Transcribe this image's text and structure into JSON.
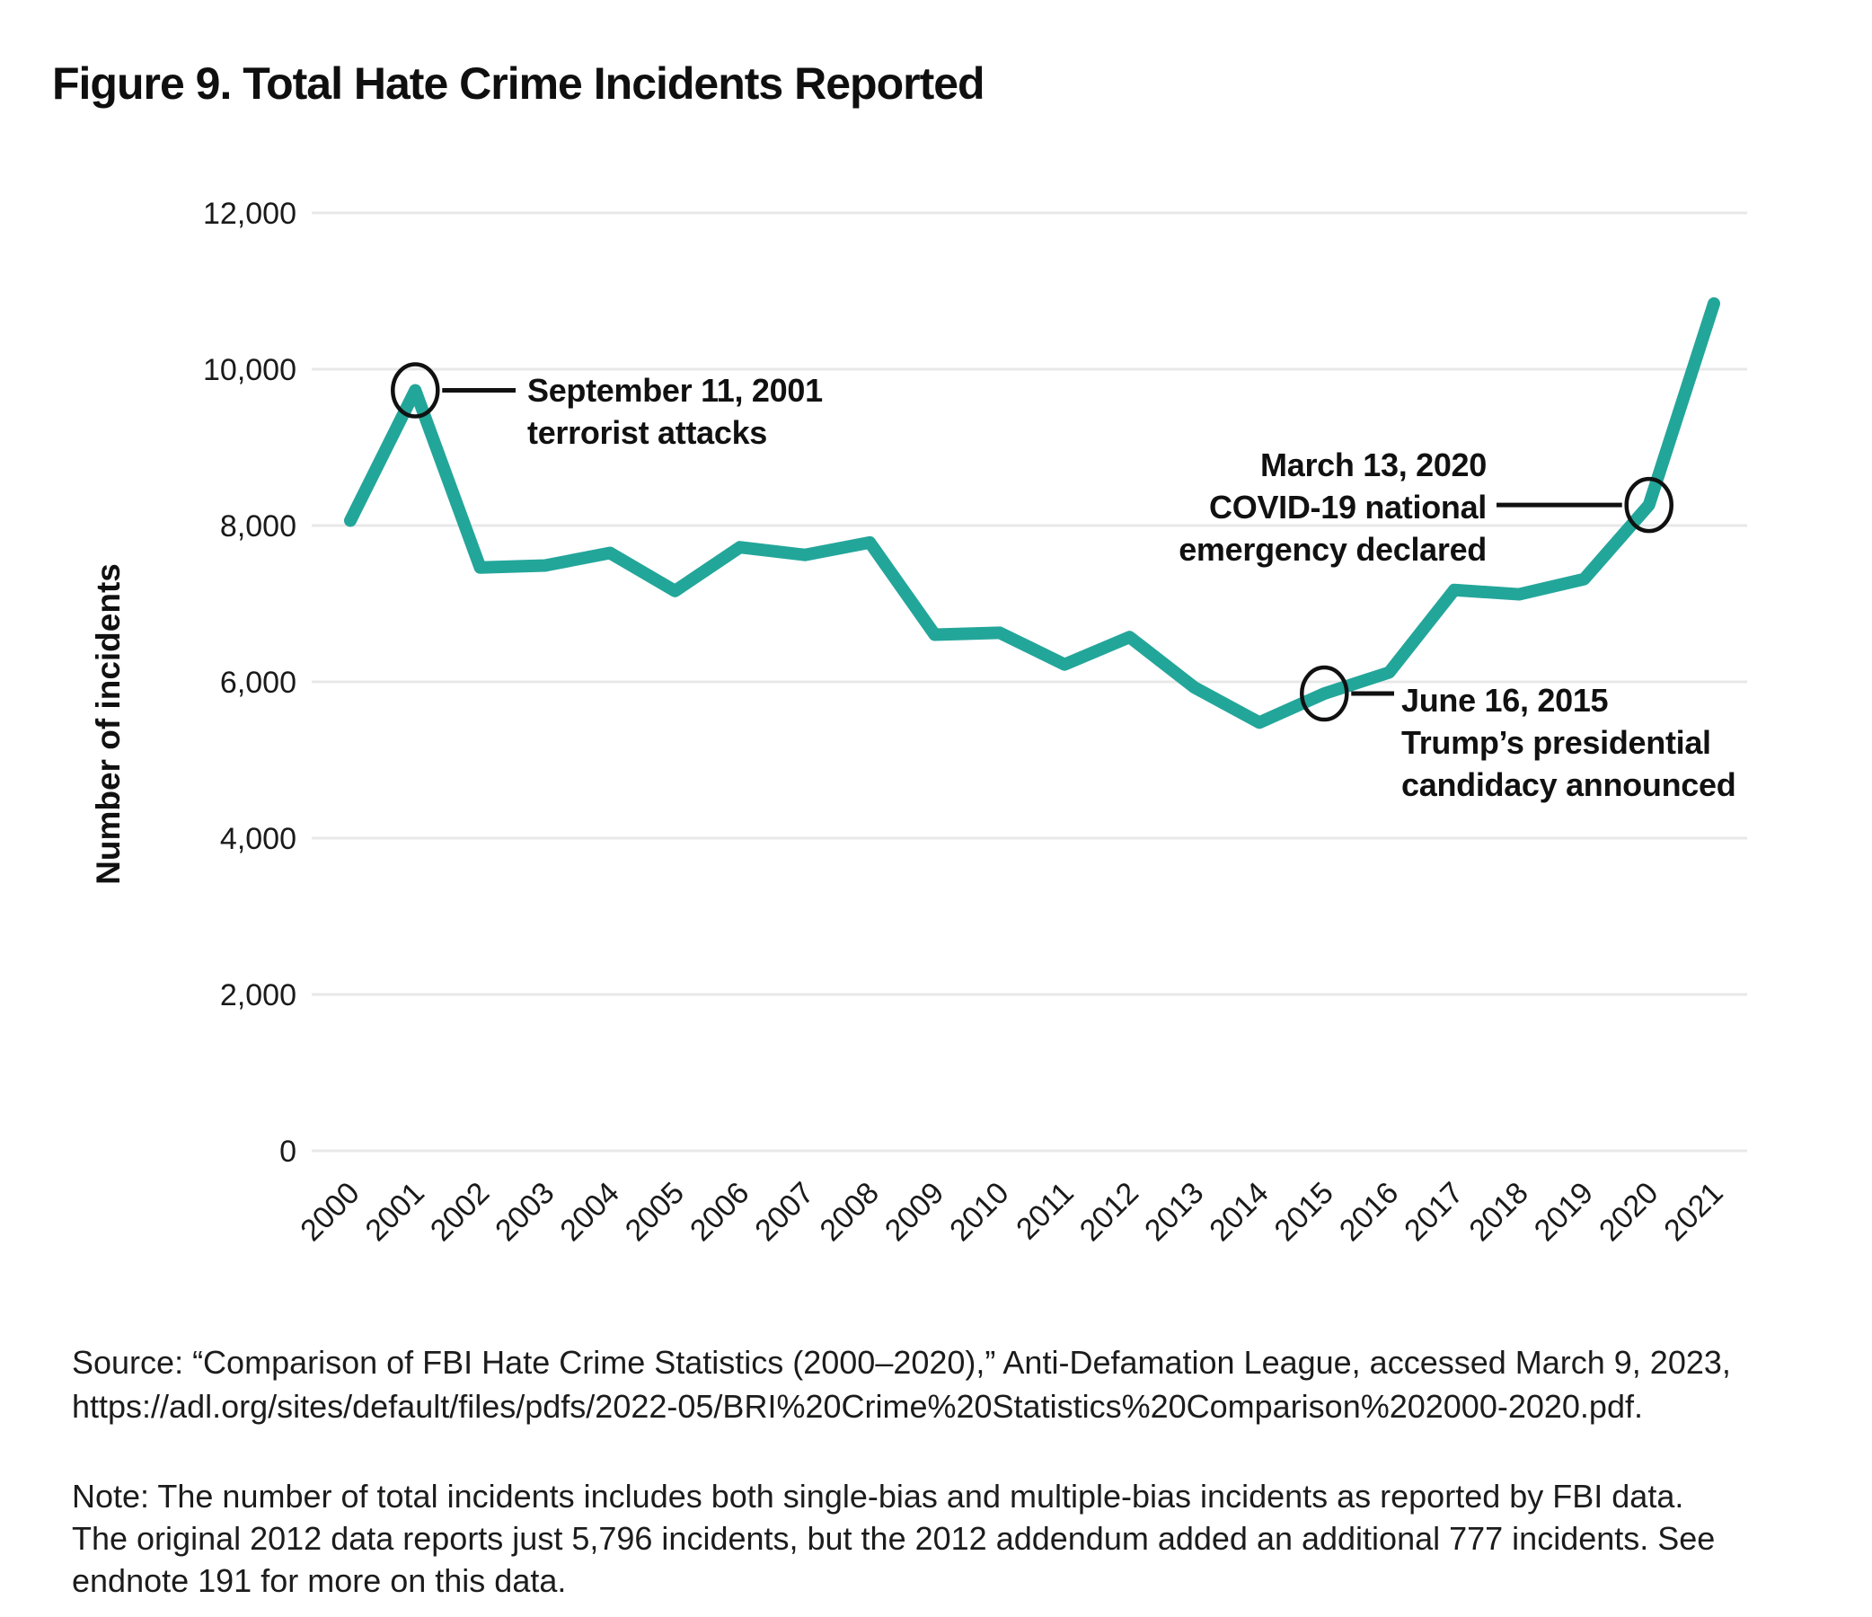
{
  "figure": {
    "title": "Figure 9. Total Hate Crime Incidents Reported"
  },
  "chart_data": {
    "type": "line",
    "title": "Figure 9. Total Hate Crime Incidents Reported",
    "xlabel": "",
    "ylabel": "Number of incidents",
    "ylim": [
      0,
      12000
    ],
    "ytick_step": 2000,
    "ytick_labels": [
      "0",
      "2,000",
      "4,000",
      "6,000",
      "8,000",
      "10,000",
      "12,000"
    ],
    "grid": "horizontal",
    "legend": "none",
    "categories": [
      2000,
      2001,
      2002,
      2003,
      2004,
      2005,
      2006,
      2007,
      2008,
      2009,
      2010,
      2011,
      2012,
      2013,
      2014,
      2015,
      2016,
      2017,
      2018,
      2019,
      2020,
      2021
    ],
    "series": [
      {
        "name": "Total hate crime incidents",
        "values": [
          8063,
          9730,
          7462,
          7489,
          7649,
          7163,
          7722,
          7624,
          7783,
          6604,
          6628,
          6222,
          6573,
          5928,
          5479,
          5850,
          6121,
          7175,
          7120,
          7314,
          8263,
          10840
        ]
      }
    ],
    "colors": {
      "line": "#23a69a",
      "grid": "#e8e8e8",
      "text": "#1a1a1a",
      "annotation": "#111111"
    },
    "annotations": [
      {
        "year": 2001,
        "value": 9730,
        "lines": [
          "September 11, 2001",
          "terrorist attacks"
        ]
      },
      {
        "year": 2020,
        "value": 8263,
        "lines": [
          "March 13, 2020",
          "COVID-19 national",
          "emergency declared"
        ]
      },
      {
        "year": 2015,
        "value": 5850,
        "lines": [
          "June 16, 2015",
          "Trump’s presidential",
          "candidacy announced"
        ]
      }
    ]
  },
  "source": {
    "line1": "Source: “Comparison of FBI Hate Crime Statistics (2000–2020),” Anti-Defamation League, accessed March 9, 2023,",
    "line2": "https://adl.org/sites/default/files/pdfs/2022-05/BRI%20Crime%20Statistics%20Comparison%202000-2020.pdf."
  },
  "note": {
    "line1": "Note: The number of total incidents includes both single-bias and multiple-bias incidents as reported by FBI data.",
    "line2": "The original 2012 data reports just 5,796 incidents, but the 2012 addendum added an additional 777 incidents. See",
    "line3": "endnote 191 for more on this data."
  }
}
